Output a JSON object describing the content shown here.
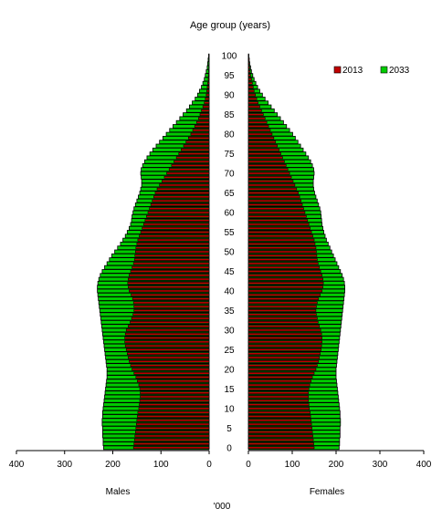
{
  "chart_data": {
    "type": "bar",
    "subtype": "population-pyramid",
    "title": "Age group (years)",
    "unit_label": "'000",
    "left_label": "Males",
    "right_label": "Females",
    "male_xlim": [
      400,
      0
    ],
    "female_xlim": [
      0,
      400
    ],
    "x_ticks": [
      0,
      100,
      200,
      300,
      400
    ],
    "age_ticks": [
      0,
      5,
      10,
      15,
      20,
      25,
      30,
      35,
      40,
      45,
      50,
      55,
      60,
      65,
      70,
      75,
      80,
      85,
      90,
      95,
      100
    ],
    "ages": [
      0,
      1,
      2,
      3,
      4,
      5,
      6,
      7,
      8,
      9,
      10,
      11,
      12,
      13,
      14,
      15,
      16,
      17,
      18,
      19,
      20,
      21,
      22,
      23,
      24,
      25,
      26,
      27,
      28,
      29,
      30,
      31,
      32,
      33,
      34,
      35,
      36,
      37,
      38,
      39,
      40,
      41,
      42,
      43,
      44,
      45,
      46,
      47,
      48,
      49,
      50,
      51,
      52,
      53,
      54,
      55,
      56,
      57,
      58,
      59,
      60,
      61,
      62,
      63,
      64,
      65,
      66,
      67,
      68,
      69,
      70,
      71,
      72,
      73,
      74,
      75,
      76,
      77,
      78,
      79,
      80,
      81,
      82,
      83,
      84,
      85,
      86,
      87,
      88,
      89,
      90,
      91,
      92,
      93,
      94,
      95,
      96,
      97,
      98,
      99,
      100
    ],
    "legend": {
      "position": "top-right"
    },
    "series": [
      {
        "name": "2013",
        "color": "#c00000",
        "males": [
          157,
          156,
          155,
          154,
          153,
          152,
          151,
          150,
          149,
          148,
          146,
          145,
          144,
          143,
          143,
          144,
          146,
          149,
          152,
          156,
          160,
          163,
          166,
          168,
          170,
          172,
          174,
          175,
          175,
          174,
          172,
          168,
          164,
          161,
          158,
          156,
          156,
          157,
          159,
          162,
          166,
          168,
          169,
          168,
          166,
          163,
          160,
          157,
          155,
          154,
          153,
          152,
          150,
          148,
          145,
          142,
          139,
          136,
          133,
          130,
          127,
          124,
          121,
          118,
          115,
          112,
          108,
          103,
          98,
          93,
          88,
          83,
          78,
          73,
          68,
          63,
          58,
          53,
          48,
          43,
          38,
          34,
          30,
          26,
          22,
          19,
          16,
          13,
          10,
          8,
          6,
          5,
          4,
          3,
          2,
          1.5,
          1,
          0.7,
          0.5,
          0.3,
          0.2
        ],
        "females": [
          150,
          149,
          148,
          147,
          146,
          145,
          144,
          143,
          142,
          141,
          139,
          138,
          137,
          137,
          137,
          138,
          140,
          143,
          146,
          150,
          154,
          157,
          160,
          162,
          164,
          166,
          167,
          168,
          168,
          167,
          165,
          162,
          159,
          157,
          155,
          154,
          155,
          157,
          160,
          164,
          168,
          170,
          171,
          170,
          168,
          165,
          162,
          159,
          157,
          156,
          155,
          154,
          152,
          150,
          147,
          144,
          141,
          138,
          135,
          132,
          129,
          126,
          123,
          120,
          117,
          114,
          110,
          106,
          102,
          98,
          94,
          90,
          86,
          82,
          78,
          74,
          70,
          66,
          62,
          58,
          54,
          50,
          46,
          42,
          38,
          34,
          30,
          26,
          22,
          19,
          16,
          13,
          11,
          9,
          7,
          5,
          4,
          3,
          2,
          1.5,
          1
        ]
      },
      {
        "name": "2033",
        "color": "#00cc00",
        "males": [
          219,
          220,
          220,
          221,
          221,
          221,
          222,
          222,
          221,
          221,
          220,
          219,
          218,
          217,
          216,
          215,
          214,
          213,
          212,
          212,
          212,
          213,
          214,
          215,
          216,
          217,
          218,
          219,
          220,
          221,
          222,
          223,
          224,
          225,
          226,
          227,
          228,
          229,
          230,
          231,
          232,
          232,
          231,
          229,
          226,
          222,
          217,
          212,
          207,
          202,
          196,
          190,
          184,
          179,
          174,
          170,
          166,
          163,
          161,
          160,
          158,
          156,
          153,
          150,
          147,
          144,
          142,
          140,
          140,
          141,
          142,
          141,
          138,
          134,
          129,
          123,
          117,
          110,
          103,
          96,
          89,
          82,
          75,
          68,
          61,
          54,
          47,
          41,
          35,
          29,
          24,
          20,
          16,
          13,
          10,
          8,
          6,
          4,
          3,
          2,
          1
        ],
        "females": [
          207,
          208,
          208,
          209,
          209,
          209,
          210,
          210,
          209,
          209,
          208,
          207,
          206,
          205,
          204,
          203,
          202,
          201,
          200,
          200,
          200,
          201,
          202,
          203,
          204,
          205,
          206,
          207,
          208,
          209,
          210,
          211,
          212,
          213,
          214,
          215,
          216,
          217,
          218,
          219,
          220,
          220,
          219,
          217,
          214,
          210,
          206,
          202,
          198,
          194,
          190,
          186,
          182,
          178,
          175,
          172,
          170,
          168,
          167,
          166,
          165,
          163,
          160,
          157,
          154,
          151,
          149,
          148,
          148,
          149,
          150,
          149,
          146,
          142,
          137,
          131,
          125,
          119,
          113,
          107,
          101,
          94,
          87,
          80,
          73,
          66,
          59,
          52,
          45,
          38,
          32,
          26,
          21,
          17,
          13,
          10,
          7,
          5,
          3,
          2,
          1
        ]
      }
    ]
  }
}
